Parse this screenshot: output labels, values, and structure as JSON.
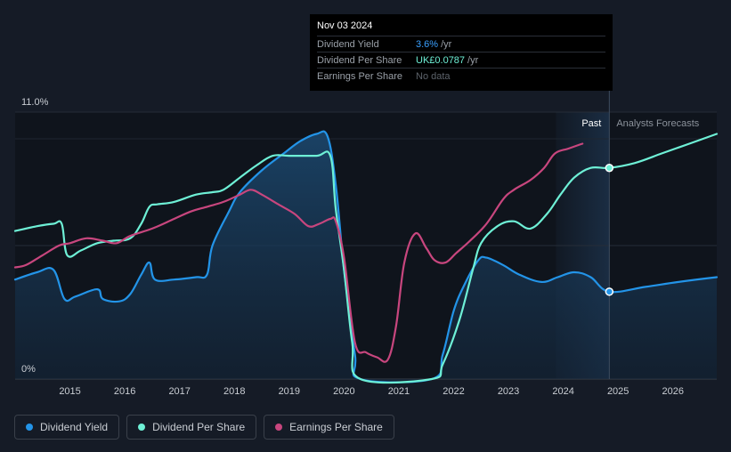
{
  "chart_data": {
    "type": "line",
    "title": "",
    "xlabel": "",
    "ylabel": "",
    "y_tick_labels": [
      "11.0%",
      "0%"
    ],
    "x_tick_labels": [
      "2015",
      "2016",
      "2017",
      "2018",
      "2019",
      "2020",
      "2021",
      "2022",
      "2023",
      "2024",
      "2025",
      "2026"
    ],
    "x_range": [
      2014.0,
      2026.8
    ],
    "y_range_percent": [
      0,
      11.0
    ],
    "past_label": "Past",
    "forecast_label": "Analysts Forecasts",
    "forecast_start": 2024.84,
    "grid": true,
    "series": [
      {
        "name": "Dividend Yield",
        "color": "#2394e8",
        "area": true,
        "points": [
          [
            2014.0,
            4.1
          ],
          [
            2014.4,
            4.4
          ],
          [
            2014.7,
            4.5
          ],
          [
            2014.9,
            3.3
          ],
          [
            2015.1,
            3.4
          ],
          [
            2015.5,
            3.7
          ],
          [
            2015.6,
            3.3
          ],
          [
            2015.9,
            3.2
          ],
          [
            2016.1,
            3.5
          ],
          [
            2016.3,
            4.3
          ],
          [
            2016.45,
            4.8
          ],
          [
            2016.55,
            4.1
          ],
          [
            2016.9,
            4.1
          ],
          [
            2017.3,
            4.2
          ],
          [
            2017.5,
            4.3
          ],
          [
            2017.6,
            5.5
          ],
          [
            2017.9,
            6.9
          ],
          [
            2018.1,
            7.7
          ],
          [
            2018.5,
            8.6
          ],
          [
            2018.9,
            9.3
          ],
          [
            2019.2,
            9.8
          ],
          [
            2019.5,
            10.1
          ],
          [
            2019.7,
            10.0
          ],
          [
            2019.85,
            8.0
          ],
          [
            2020.0,
            4.5
          ],
          [
            2020.2,
            1.0
          ],
          [
            2020.3,
            0.0
          ],
          [
            2021.6,
            0.0
          ],
          [
            2021.8,
            1.0
          ],
          [
            2022.0,
            2.8
          ],
          [
            2022.2,
            3.9
          ],
          [
            2022.45,
            4.9
          ],
          [
            2022.6,
            5.0
          ],
          [
            2022.9,
            4.7
          ],
          [
            2023.2,
            4.3
          ],
          [
            2023.6,
            4.0
          ],
          [
            2023.9,
            4.2
          ],
          [
            2024.2,
            4.4
          ],
          [
            2024.5,
            4.2
          ],
          [
            2024.84,
            3.6
          ],
          [
            2025.5,
            3.8
          ],
          [
            2026.1,
            4.0
          ],
          [
            2026.8,
            4.2
          ]
        ]
      },
      {
        "name": "Dividend Per Share",
        "color": "#6ef0d6",
        "area": false,
        "points": [
          [
            2014.0,
            6.1
          ],
          [
            2014.4,
            6.3
          ],
          [
            2014.7,
            6.4
          ],
          [
            2014.85,
            6.4
          ],
          [
            2014.95,
            5.1
          ],
          [
            2015.2,
            5.3
          ],
          [
            2015.5,
            5.6
          ],
          [
            2015.8,
            5.7
          ],
          [
            2016.1,
            5.8
          ],
          [
            2016.3,
            6.4
          ],
          [
            2016.45,
            7.1
          ],
          [
            2016.6,
            7.2
          ],
          [
            2016.9,
            7.3
          ],
          [
            2017.3,
            7.6
          ],
          [
            2017.6,
            7.7
          ],
          [
            2017.8,
            7.8
          ],
          [
            2018.1,
            8.3
          ],
          [
            2018.4,
            8.8
          ],
          [
            2018.7,
            9.2
          ],
          [
            2019.0,
            9.2
          ],
          [
            2019.5,
            9.2
          ],
          [
            2019.75,
            9.2
          ],
          [
            2019.85,
            7.0
          ],
          [
            2020.0,
            4.5
          ],
          [
            2020.15,
            1.5
          ],
          [
            2020.3,
            0.0
          ],
          [
            2021.6,
            0.0
          ],
          [
            2021.8,
            0.6
          ],
          [
            2022.1,
            2.4
          ],
          [
            2022.35,
            4.5
          ],
          [
            2022.5,
            5.6
          ],
          [
            2022.8,
            6.3
          ],
          [
            2023.1,
            6.5
          ],
          [
            2023.4,
            6.2
          ],
          [
            2023.7,
            6.8
          ],
          [
            2023.95,
            7.6
          ],
          [
            2024.2,
            8.3
          ],
          [
            2024.5,
            8.7
          ],
          [
            2024.84,
            8.7
          ],
          [
            2025.3,
            8.9
          ],
          [
            2025.8,
            9.3
          ],
          [
            2026.3,
            9.7
          ],
          [
            2026.8,
            10.1
          ]
        ]
      },
      {
        "name": "Earnings Per Share",
        "color": "#c8467e",
        "area": false,
        "points": [
          [
            2014.0,
            4.6
          ],
          [
            2014.2,
            4.7
          ],
          [
            2014.5,
            5.1
          ],
          [
            2014.8,
            5.5
          ],
          [
            2015.0,
            5.6
          ],
          [
            2015.3,
            5.8
          ],
          [
            2015.6,
            5.7
          ],
          [
            2015.85,
            5.6
          ],
          [
            2016.1,
            5.9
          ],
          [
            2016.5,
            6.2
          ],
          [
            2016.9,
            6.6
          ],
          [
            2017.2,
            6.9
          ],
          [
            2017.5,
            7.1
          ],
          [
            2017.8,
            7.3
          ],
          [
            2018.1,
            7.6
          ],
          [
            2018.3,
            7.8
          ],
          [
            2018.5,
            7.6
          ],
          [
            2018.8,
            7.2
          ],
          [
            2019.1,
            6.8
          ],
          [
            2019.35,
            6.3
          ],
          [
            2019.55,
            6.4
          ],
          [
            2019.75,
            6.6
          ],
          [
            2019.85,
            6.5
          ],
          [
            2020.0,
            5.0
          ],
          [
            2020.2,
            1.5
          ],
          [
            2020.4,
            1.1
          ],
          [
            2020.6,
            0.9
          ],
          [
            2020.8,
            0.8
          ],
          [
            2020.95,
            2.2
          ],
          [
            2021.1,
            4.8
          ],
          [
            2021.3,
            6.0
          ],
          [
            2021.5,
            5.4
          ],
          [
            2021.65,
            4.9
          ],
          [
            2021.85,
            4.8
          ],
          [
            2022.05,
            5.2
          ],
          [
            2022.3,
            5.7
          ],
          [
            2022.6,
            6.4
          ],
          [
            2022.9,
            7.4
          ],
          [
            2023.1,
            7.8
          ],
          [
            2023.4,
            8.2
          ],
          [
            2023.65,
            8.7
          ],
          [
            2023.85,
            9.3
          ],
          [
            2024.1,
            9.5
          ],
          [
            2024.35,
            9.7
          ]
        ]
      }
    ],
    "markers": [
      {
        "series": "Dividend Per Share",
        "x": 2024.84,
        "y": 8.7
      },
      {
        "series": "Dividend Yield",
        "x": 2024.84,
        "y": 3.6
      }
    ]
  },
  "tooltip": {
    "date": "Nov 03 2024",
    "rows": [
      {
        "label": "Dividend Yield",
        "value": "3.6%",
        "unit": "/yr"
      },
      {
        "label": "Dividend Per Share",
        "value": "UK£0.0787",
        "unit": "/yr"
      },
      {
        "label": "Earnings Per Share",
        "value": "No data"
      }
    ]
  },
  "legend": [
    {
      "label": "Dividend Yield",
      "color": "#2394e8"
    },
    {
      "label": "Dividend Per Share",
      "color": "#6ef0d6"
    },
    {
      "label": "Earnings Per Share",
      "color": "#c8467e"
    }
  ]
}
